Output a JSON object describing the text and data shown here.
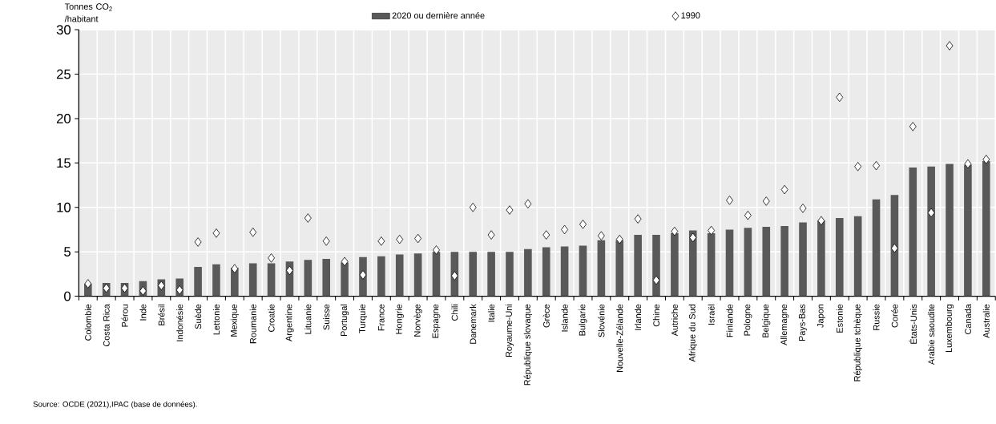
{
  "chart_data": {
    "type": "bar",
    "ylabel": "Tonnes CO$_{2}$ /habitant",
    "categories": [
      "Colombie",
      "Costa Rica",
      "Pérou",
      "Inde",
      "Brésil",
      "Indonésie",
      "Suède",
      "Lettonie",
      "Mexique",
      "Roumanie",
      "Croatie",
      "Argentine",
      "Lituanie",
      "Suisse",
      "Portugal",
      "Turquie",
      "France",
      "Hongrie",
      "Norvège",
      "Espagne",
      "Chili",
      "Danemark",
      "Italie",
      "Royaume-Uni",
      "République slovaque",
      "Grèce",
      "Islande",
      "Bulgarie",
      "Slovénie",
      "Nouvelle-Zélande",
      "Irlande",
      "Chine",
      "Autriche",
      "Afrique du Sud",
      "Israël",
      "Finlande",
      "Pologne",
      "Belgique",
      "Allemagne",
      "Pays-Bas",
      "Japon",
      "Estonie",
      "République tchèque",
      "Russie",
      "Corée",
      "États-Unis",
      "Arabie saoudite",
      "Luxembourg",
      "Canada",
      "Australie"
    ],
    "series": [
      {
        "name": "2020 ou dernière année",
        "color": "#595959",
        "values": [
          1.4,
          1.5,
          1.5,
          1.7,
          1.9,
          2.0,
          3.3,
          3.6,
          3.2,
          3.7,
          3.7,
          3.9,
          4.1,
          4.2,
          3.8,
          4.4,
          4.5,
          4.7,
          4.8,
          5.0,
          5.0,
          5.0,
          5.0,
          5.0,
          5.3,
          5.5,
          5.6,
          5.7,
          6.3,
          6.3,
          6.9,
          6.9,
          7.1,
          7.4,
          7.1,
          7.5,
          7.7,
          7.8,
          7.9,
          8.3,
          8.5,
          8.8,
          9.0,
          10.9,
          11.4,
          14.5,
          14.6,
          14.9,
          14.8,
          15.2
        ]
      },
      {
        "name": "1990",
        "type": "scatter",
        "marker": "diamond",
        "color": "#000000",
        "values": [
          1.4,
          0.9,
          0.9,
          0.6,
          1.2,
          0.7,
          6.1,
          7.1,
          3.1,
          7.2,
          4.3,
          2.9,
          8.8,
          6.2,
          3.9,
          2.4,
          6.2,
          6.4,
          6.5,
          5.2,
          2.3,
          10.0,
          6.9,
          9.7,
          10.4,
          6.9,
          7.5,
          8.1,
          6.8,
          6.4,
          8.7,
          1.8,
          7.3,
          6.6,
          7.4,
          10.8,
          9.1,
          10.7,
          12.0,
          9.9,
          8.5,
          22.4,
          14.6,
          14.7,
          5.4,
          19.1,
          9.4,
          28.2,
          14.9,
          15.4
        ]
      }
    ],
    "ylim": [
      0,
      30
    ],
    "yticks": [
      0,
      5,
      10,
      15,
      20,
      25,
      30
    ],
    "grid": true,
    "legend": "top",
    "annotations": [
      "Source: OCDE (2021),IPAC (base de données)."
    ]
  }
}
